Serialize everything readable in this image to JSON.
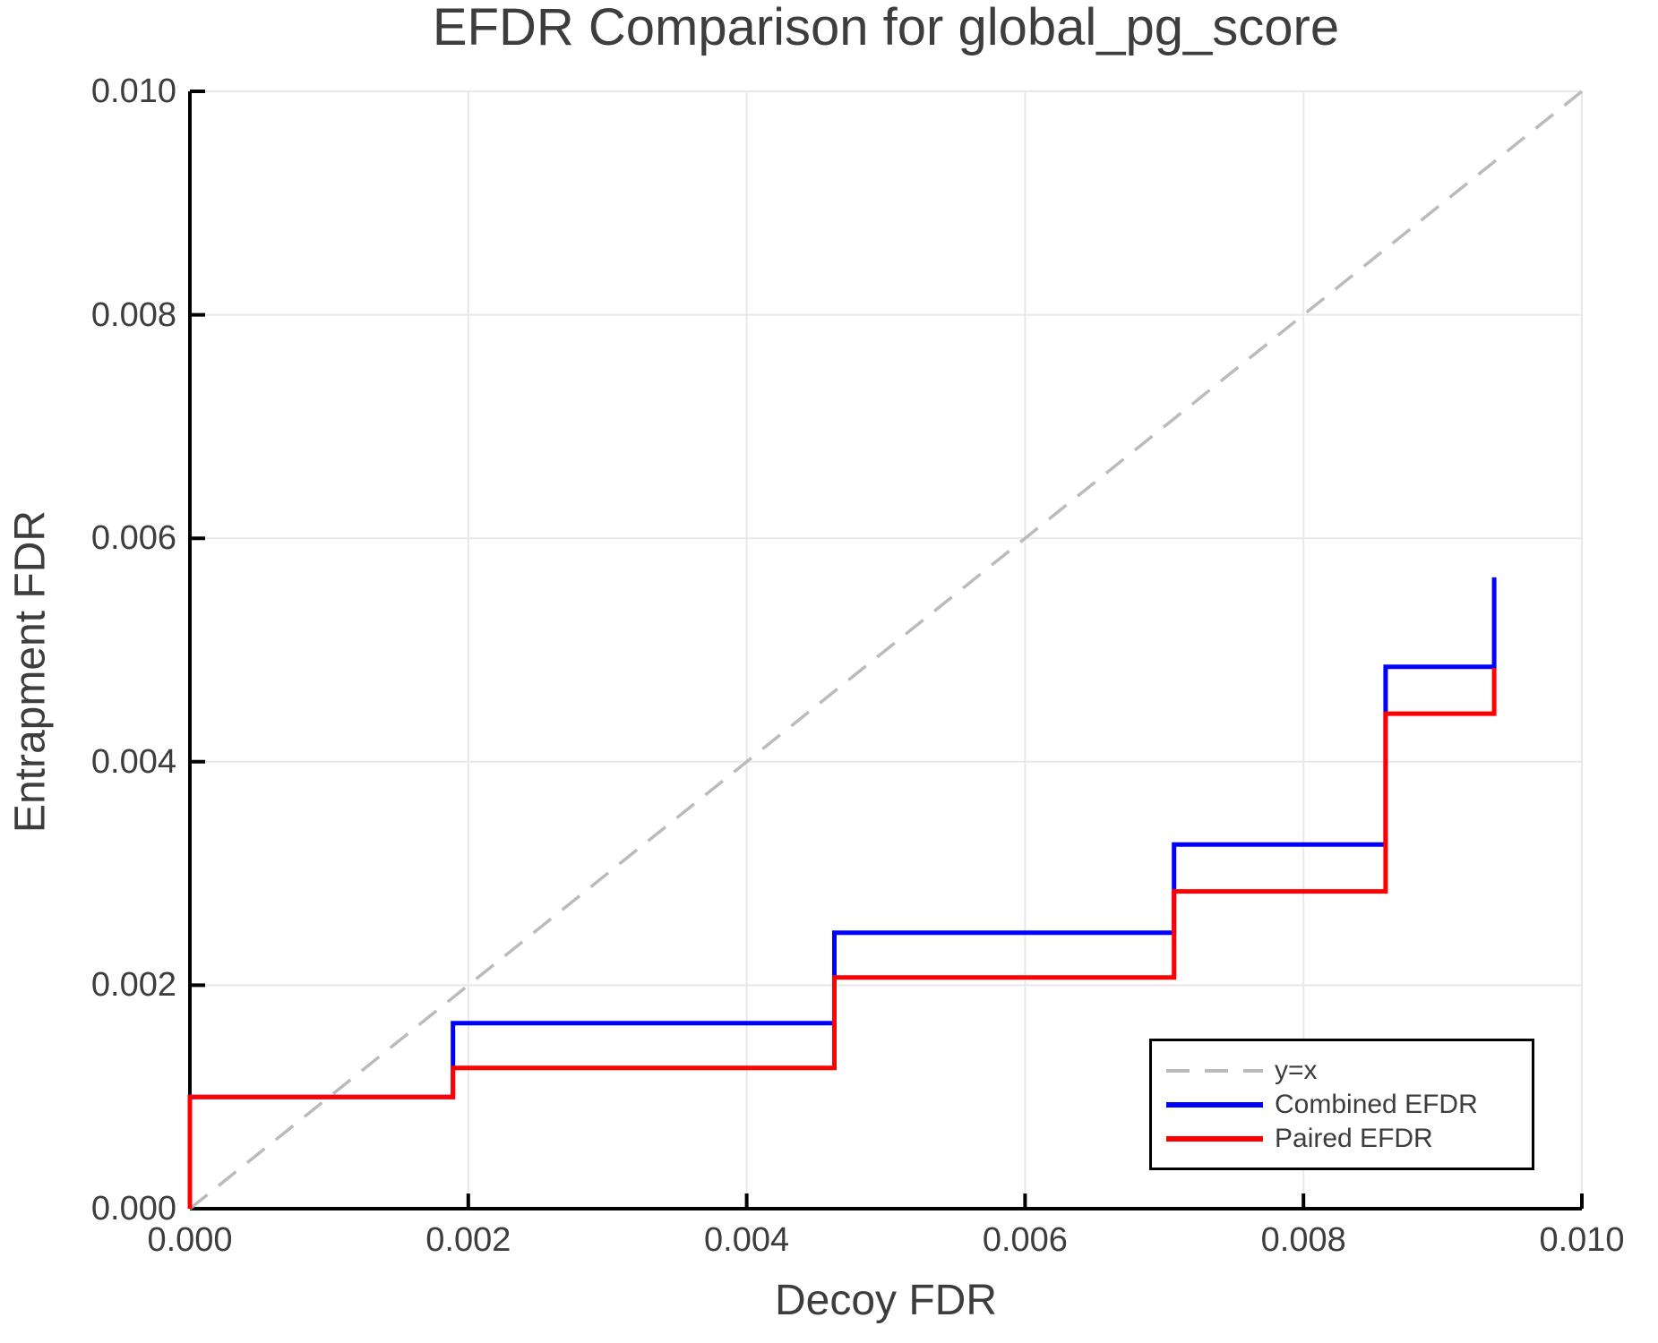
{
  "chart_data": {
    "type": "line",
    "title": "EFDR Comparison for global_pg_score",
    "xlabel": "Decoy FDR",
    "ylabel": "Entrapment FDR",
    "xlim": [
      0,
      0.01
    ],
    "ylim": [
      0,
      0.01
    ],
    "grid": true,
    "legend_position": "lower right",
    "x_ticks": {
      "values": [
        0,
        0.002,
        0.004,
        0.006,
        0.008,
        0.01
      ],
      "labels": [
        "0.000",
        "0.002",
        "0.004",
        "0.006",
        "0.008",
        "0.010"
      ]
    },
    "y_ticks": {
      "values": [
        0,
        0.002,
        0.004,
        0.006,
        0.008,
        0.01
      ],
      "labels": [
        "0.000",
        "0.002",
        "0.004",
        "0.006",
        "0.008",
        "0.010"
      ]
    },
    "axis_color": "#000000",
    "grid_color": "#e8e8e8",
    "text_color": "#3d3d3d",
    "legend": [
      {
        "label": "y=x",
        "color": "#bbbbbb",
        "dashed": true
      },
      {
        "label": "Combined EFDR",
        "color": "#0000ff",
        "dashed": false
      },
      {
        "label": "Paired EFDR",
        "color": "#ff0000",
        "dashed": false
      }
    ],
    "series": [
      {
        "name": "y=x",
        "color": "#bbbbbb",
        "dashed": true,
        "points": [
          [
            0,
            0
          ],
          [
            0.01,
            0.01
          ]
        ]
      },
      {
        "name": "Combined EFDR",
        "color": "#0000ff",
        "dashed": false,
        "points": [
          [
            0,
            0
          ],
          [
            0,
            0.001
          ],
          [
            0.00189,
            0.001
          ],
          [
            0.00189,
            0.00166
          ],
          [
            0.00463,
            0.00166
          ],
          [
            0.00463,
            0.00247
          ],
          [
            0.00707,
            0.00247
          ],
          [
            0.00707,
            0.00326
          ],
          [
            0.00859,
            0.00326
          ],
          [
            0.00859,
            0.00485
          ],
          [
            0.00937,
            0.00485
          ],
          [
            0.00937,
            0.00565
          ]
        ]
      },
      {
        "name": "Paired EFDR",
        "color": "#ff0000",
        "dashed": false,
        "points": [
          [
            0,
            0
          ],
          [
            0,
            0.001
          ],
          [
            0.00189,
            0.001
          ],
          [
            0.00189,
            0.00126
          ],
          [
            0.00463,
            0.00126
          ],
          [
            0.00463,
            0.00207
          ],
          [
            0.00707,
            0.00207
          ],
          [
            0.00707,
            0.00284
          ],
          [
            0.00859,
            0.00284
          ],
          [
            0.00859,
            0.00443
          ],
          [
            0.00937,
            0.00443
          ],
          [
            0.00937,
            0.00484
          ]
        ]
      }
    ]
  }
}
